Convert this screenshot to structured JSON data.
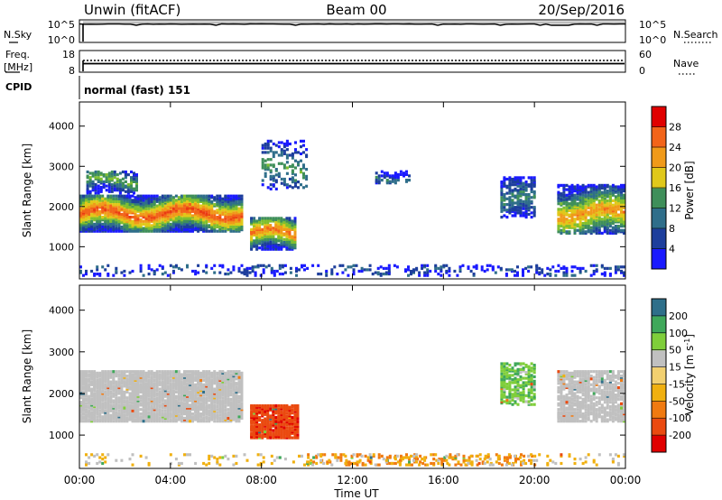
{
  "header": {
    "station": "Unwin (fitACF)",
    "beam": "Beam 00",
    "date": "20/Sep/2016"
  },
  "top_panels": {
    "nsky": {
      "label": "N.Sky",
      "ticks": [
        "10^5",
        "10^0"
      ]
    },
    "nsearch": {
      "label": "N.Search",
      "ticks": [
        "10^5",
        "10^0"
      ]
    },
    "freq": {
      "label_line1": "Freq.",
      "label_line2": "[MHz]",
      "ticks": [
        "18",
        "8"
      ]
    },
    "nave": {
      "label": "Nave",
      "ticks": [
        "60",
        "0"
      ]
    },
    "cpid": {
      "label": "CPID",
      "value": "normal (fast) 151"
    }
  },
  "axes": {
    "x_label": "Time UT",
    "x_ticks": [
      "00:00",
      "04:00",
      "08:00",
      "12:00",
      "16:00",
      "20:00",
      "00:00"
    ],
    "y_label": "Slant Range [km]",
    "y_ticks": [
      "1000",
      "2000",
      "3000",
      "4000"
    ]
  },
  "colors": {
    "power_scale": [
      "#1a1aff",
      "#1d3e9c",
      "#2f6e8a",
      "#3f8f5a",
      "#7fbf2f",
      "#e0c81a",
      "#f09a1a",
      "#f2641a",
      "#ea3a12",
      "#e00000"
    ],
    "velocity_scale": [
      "#e00000",
      "#ea4a10",
      "#f07a10",
      "#f0b010",
      "#f2d070",
      "#c0c0c0",
      "#7fce3a",
      "#3fa85a",
      "#2e6f8a",
      "#1a2fbf"
    ]
  },
  "power_colorbar": {
    "label": "Power [dB]",
    "ticks": [
      "4",
      "8",
      "12",
      "16",
      "20",
      "24",
      "28"
    ]
  },
  "velocity_colorbar": {
    "label": "Velocity [m s^-1]",
    "ticks": [
      "-200",
      "-100",
      "-50",
      "-15",
      "15",
      "50",
      "100",
      "200"
    ]
  },
  "chart_data": [
    {
      "type": "heatmap",
      "name": "power",
      "xlabel": "Time UT",
      "ylabel": "Slant Range [km]",
      "xlim": [
        0,
        24
      ],
      "ylim": [
        200,
        4600
      ],
      "colorbar": {
        "label": "Power [dB]",
        "range": [
          0,
          32
        ]
      },
      "regions": [
        {
          "t0": 0.0,
          "t1": 7.2,
          "r_lo": 1350,
          "r_hi": 2250,
          "r_ridge": 1800,
          "peak_db": 26,
          "density": 0.85
        },
        {
          "t0": 0.3,
          "t1": 2.5,
          "r_lo": 2300,
          "r_hi": 2850,
          "r_ridge": 2600,
          "peak_db": 14,
          "density": 0.55
        },
        {
          "t0": 7.5,
          "t1": 9.5,
          "r_lo": 900,
          "r_hi": 1700,
          "r_ridge": 1300,
          "peak_db": 24,
          "density": 0.8
        },
        {
          "t0": 8.0,
          "t1": 10.0,
          "r_lo": 2400,
          "r_hi": 3600,
          "r_ridge": 2900,
          "peak_db": 12,
          "density": 0.25
        },
        {
          "t0": 13.0,
          "t1": 14.5,
          "r_lo": 2550,
          "r_hi": 2850,
          "r_ridge": 2700,
          "peak_db": 9,
          "density": 0.4
        },
        {
          "t0": 18.5,
          "t1": 20.0,
          "r_lo": 1700,
          "r_hi": 2700,
          "r_ridge": 2100,
          "peak_db": 10,
          "density": 0.5
        },
        {
          "t0": 21.0,
          "t1": 24.0,
          "r_lo": 1300,
          "r_hi": 2500,
          "r_ridge": 1800,
          "peak_db": 22,
          "density": 0.7
        },
        {
          "t0": 0.0,
          "t1": 24.0,
          "r_lo": 250,
          "r_hi": 500,
          "r_ridge": 350,
          "peak_db": 8,
          "density": 0.22
        }
      ]
    },
    {
      "type": "heatmap",
      "name": "velocity",
      "xlabel": "Time UT",
      "ylabel": "Slant Range [km]",
      "xlim": [
        0,
        24
      ],
      "ylim": [
        200,
        4600
      ],
      "colorbar": {
        "label": "Velocity [m s^-1]",
        "range": [
          -250,
          250
        ]
      },
      "regions": [
        {
          "t0": 0.0,
          "t1": 7.2,
          "r_lo": 1300,
          "r_hi": 2500,
          "vel": 0,
          "density": 0.85
        },
        {
          "t0": 7.5,
          "t1": 9.6,
          "r_lo": 900,
          "r_hi": 1700,
          "vel": -180,
          "density": 0.85
        },
        {
          "t0": 18.5,
          "t1": 20.0,
          "r_lo": 1700,
          "r_hi": 2700,
          "vel": 40,
          "density": 0.5
        },
        {
          "t0": 21.0,
          "t1": 24.0,
          "r_lo": 1300,
          "r_hi": 2500,
          "vel": 0,
          "density": 0.7
        },
        {
          "t0": 10.0,
          "t1": 20.0,
          "r_lo": 250,
          "r_hi": 500,
          "vel": -60,
          "density": 0.25
        },
        {
          "t0": 0.0,
          "t1": 24.0,
          "r_lo": 250,
          "r_hi": 500,
          "vel": -20,
          "density": 0.12
        }
      ]
    }
  ]
}
